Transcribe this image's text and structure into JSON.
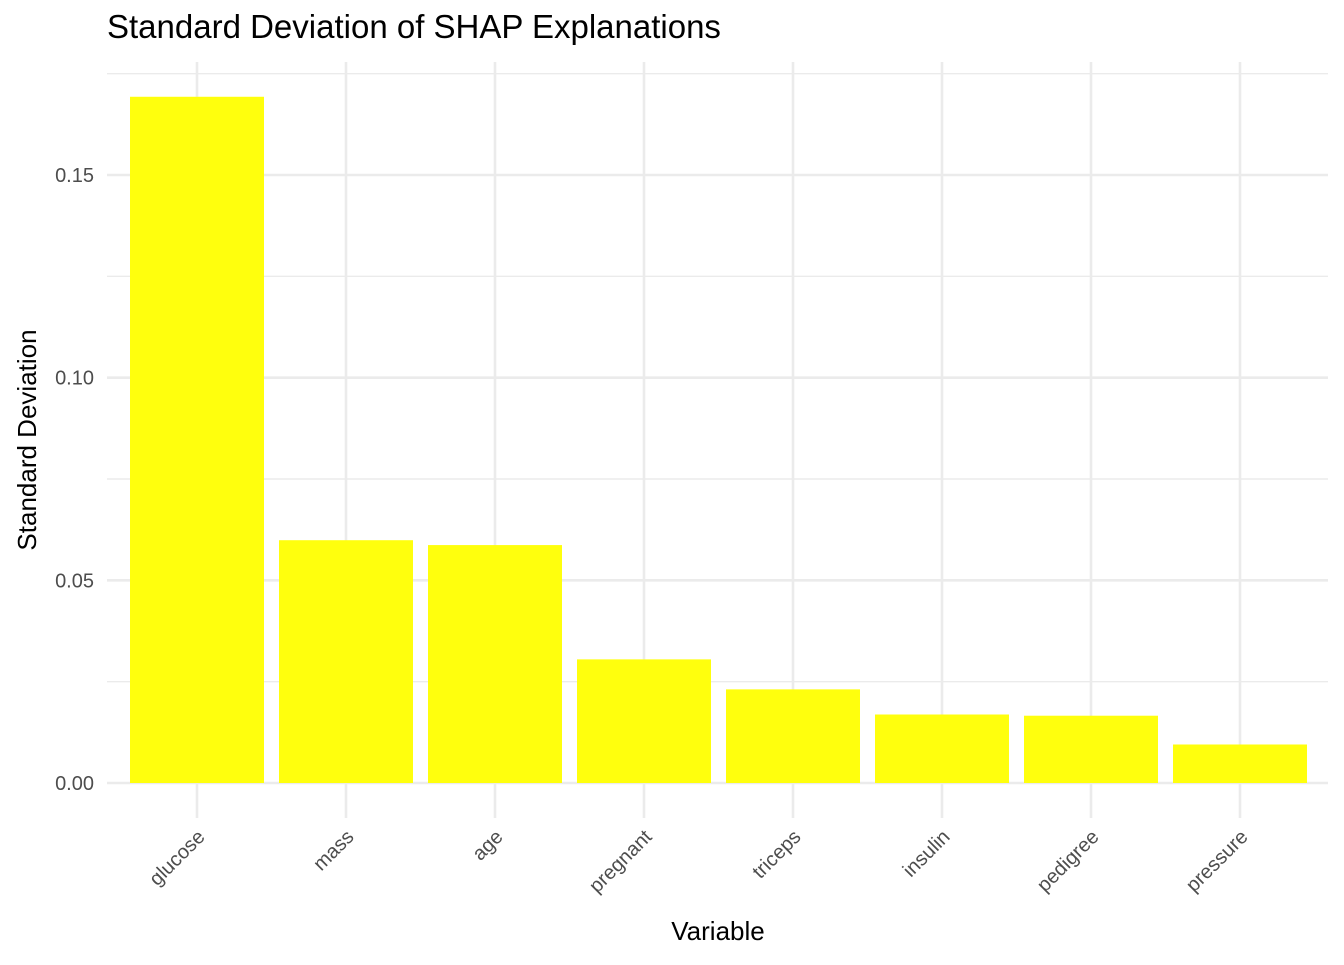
{
  "chart_data": {
    "type": "bar",
    "title": "Standard Deviation of SHAP Explanations",
    "xlabel": "Variable",
    "ylabel": "Standard Deviation",
    "categories": [
      "glucose",
      "mass",
      "age",
      "pregnant",
      "triceps",
      "insulin",
      "pedigree",
      "pressure"
    ],
    "values": [
      0.1693,
      0.0599,
      0.0587,
      0.0305,
      0.0231,
      0.0169,
      0.0166,
      0.0095
    ],
    "ylim": [
      -0.005,
      0.178
    ],
    "yticks": [
      0.0,
      0.05,
      0.1,
      0.15
    ],
    "ytick_labels": [
      "0.00",
      "0.05",
      "0.10",
      "0.15"
    ],
    "grid": true,
    "bar_color": "#FFFF0D",
    "grid_color": "#EBEBEB",
    "background": "#FFFFFF"
  }
}
